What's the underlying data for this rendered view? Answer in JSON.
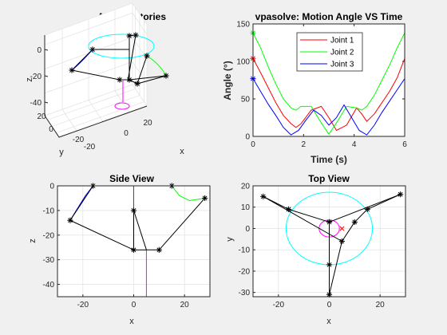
{
  "colors": {
    "joint1": "#ff0000",
    "joint2": "#00ff00",
    "joint3": "#0000ff",
    "cyan": "#00ffff",
    "magenta": "#ff00ff",
    "link": "#000000",
    "background": "#f0f0f0"
  },
  "chart_data": [
    {
      "id": "all_trajectories",
      "type": "line3d",
      "title": "All Trajectories",
      "xlabel": "x",
      "ylabel": "y",
      "zlabel": "z",
      "x_ticks": [
        "-20",
        "0",
        "20"
      ],
      "y_ticks": [
        "20",
        "0",
        "-20"
      ],
      "z_ticks": [
        "0",
        "-20",
        "-40"
      ],
      "grid": true
    },
    {
      "id": "motion_angle",
      "type": "line",
      "title": "vpasolve: Motion Angle VS Time",
      "xlabel": "Time (s)",
      "ylabel": "Angle (°)",
      "xlim": [
        0,
        6
      ],
      "ylim": [
        0,
        150
      ],
      "x_ticks": [
        "0",
        "2",
        "4",
        "6"
      ],
      "y_ticks": [
        "0",
        "50",
        "100",
        "150"
      ],
      "legend_position": "top-right",
      "series": [
        {
          "name": "Joint 1",
          "color": "#ff0000",
          "x": [
            0,
            0.3,
            0.6,
            0.9,
            1.2,
            1.5,
            1.7,
            1.9,
            2.3,
            2.7,
            3.0,
            3.3,
            3.7,
            4.1,
            4.3,
            4.5,
            4.8,
            5.1,
            5.4,
            5.7,
            6.0
          ],
          "y": [
            104,
            85,
            65,
            45,
            28,
            17,
            12,
            17,
            35,
            40,
            25,
            8,
            15,
            38,
            30,
            20,
            30,
            45,
            60,
            78,
            104
          ],
          "start_marker": "*"
        },
        {
          "name": "Joint 2",
          "color": "#00ff00",
          "x": [
            0,
            0.3,
            0.6,
            0.9,
            1.2,
            1.5,
            1.7,
            1.9,
            2.3,
            2.7,
            3.0,
            3.3,
            3.7,
            4.1,
            4.3,
            4.5,
            4.8,
            5.1,
            5.4,
            5.7,
            6.0
          ],
          "y": [
            138,
            118,
            93,
            70,
            50,
            38,
            35,
            40,
            40,
            18,
            3,
            18,
            40,
            38,
            35,
            40,
            55,
            75,
            95,
            118,
            138
          ],
          "start_marker": "*"
        },
        {
          "name": "Joint 3",
          "color": "#0000ff",
          "x": [
            0,
            0.3,
            0.6,
            0.9,
            1.2,
            1.5,
            1.8,
            2.1,
            2.4,
            2.7,
            3.0,
            3.3,
            3.6,
            3.9,
            4.2,
            4.5,
            4.8,
            5.1,
            5.4,
            5.7,
            6.0
          ],
          "y": [
            77,
            60,
            43,
            28,
            12,
            2,
            8,
            22,
            35,
            28,
            15,
            25,
            42,
            25,
            8,
            2,
            15,
            32,
            47,
            62,
            77
          ],
          "start_marker": "*"
        }
      ]
    },
    {
      "id": "side_view",
      "type": "line",
      "title": "Side View",
      "xlabel": "x",
      "ylabel": "z",
      "xlim": [
        -30,
        30
      ],
      "ylim": [
        -45,
        0
      ],
      "x_ticks": [
        "-20",
        "0",
        "20"
      ],
      "y_ticks": [
        "0",
        "-10",
        "-20",
        "-30",
        "-40"
      ],
      "grid": true,
      "links": [
        [
          [
            -25,
            -14
          ],
          [
            -16,
            0
          ]
        ],
        [
          [
            -25,
            -14
          ],
          [
            0,
            -26
          ]
        ],
        [
          [
            0,
            -26
          ],
          [
            0,
            -10
          ]
        ],
        [
          [
            0,
            -26
          ],
          [
            5,
            -26
          ]
        ],
        [
          [
            5,
            -26
          ],
          [
            10,
            -26
          ]
        ],
        [
          [
            10,
            -26
          ],
          [
            28,
            -5
          ]
        ],
        [
          [
            5,
            -26
          ],
          [
            0,
            -10
          ]
        ]
      ],
      "joints": [
        [
          -25,
          -14
        ],
        [
          -16,
          0
        ],
        [
          0,
          -10
        ],
        [
          0,
          -26
        ],
        [
          10,
          -26
        ],
        [
          15,
          0
        ],
        [
          28,
          -5
        ]
      ],
      "traj_blue": [
        [
          -16,
          0
        ],
        [
          -19,
          -4
        ],
        [
          -22,
          -9
        ],
        [
          -25,
          -14
        ]
      ],
      "traj_green": [
        [
          15,
          0
        ],
        [
          18,
          -4
        ],
        [
          22,
          -6
        ],
        [
          28,
          -5
        ]
      ],
      "traj_red": [
        [
          0,
          0
        ],
        [
          0,
          -10
        ]
      ],
      "traj_cyan": [
        [
          -16,
          0
        ],
        [
          15,
          0
        ]
      ],
      "traj_magenta": [
        [
          0,
          -45
        ],
        [
          5,
          -45
        ],
        [
          5,
          -26
        ]
      ]
    },
    {
      "id": "top_view",
      "type": "line",
      "title": "Top View",
      "xlabel": "x",
      "ylabel": "y",
      "xlim": [
        -30,
        30
      ],
      "ylim": [
        -32,
        20
      ],
      "x_ticks": [
        "-20",
        "0",
        "20"
      ],
      "y_ticks": [
        "20",
        "10",
        "0",
        "-10",
        "-20",
        "-30"
      ],
      "grid": true,
      "links": [
        [
          [
            -26,
            15
          ],
          [
            -16,
            9
          ]
        ],
        [
          [
            -16,
            9
          ],
          [
            0,
            3
          ]
        ],
        [
          [
            -26,
            15
          ],
          [
            5,
            -6
          ]
        ],
        [
          [
            0,
            3
          ],
          [
            0,
            -17
          ]
        ],
        [
          [
            0,
            -17
          ],
          [
            0,
            -31
          ]
        ],
        [
          [
            5,
            -6
          ],
          [
            0,
            -31
          ]
        ],
        [
          [
            5,
            -6
          ],
          [
            10,
            3
          ]
        ],
        [
          [
            10,
            3
          ],
          [
            15,
            9
          ]
        ],
        [
          [
            15,
            9
          ],
          [
            28,
            16
          ]
        ],
        [
          [
            28,
            16
          ],
          [
            0,
            3
          ]
        ]
      ],
      "joints": [
        [
          -26,
          15
        ],
        [
          -16,
          9
        ],
        [
          0,
          3
        ],
        [
          10,
          3
        ],
        [
          15,
          9
        ],
        [
          28,
          16
        ],
        [
          5,
          -6
        ],
        [
          0,
          -17
        ],
        [
          0,
          -31
        ]
      ],
      "cyan_circle": {
        "cx": 0,
        "cy": 0,
        "r": 17
      },
      "magenta_circle": {
        "cx": 0,
        "cy": 0,
        "r": 4
      },
      "red_marker": [
        5,
        0
      ]
    }
  ]
}
